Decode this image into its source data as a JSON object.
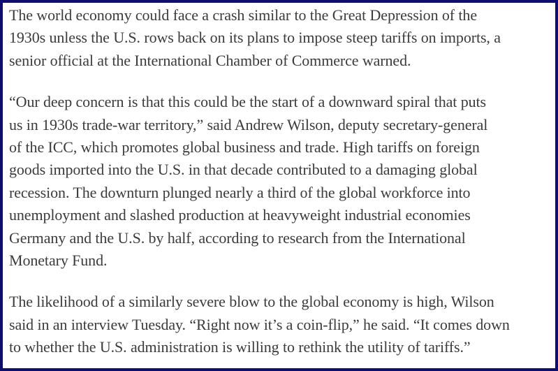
{
  "article": {
    "background_color": "#ffffff",
    "border_color": "#0e0e70",
    "text_color": "#3b3b3b",
    "paragraphs": [
      {
        "lines": [
          "The world economy could face a crash similar to the Great Depression of the",
          "1930s unless the U.S. rows back on its plans to impose steep tariffs on imports, a",
          "senior official at the International Chamber of Commerce warned."
        ]
      },
      {
        "lines": [
          "“Our deep concern is that this could be the start of a downward spiral that puts",
          "us in 1930s trade-war territory,” said Andrew Wilson, deputy secretary-general",
          "of the ICC, which promotes global business and trade. High tariffs on foreign",
          "goods imported into the U.S. in that decade contributed to a damaging global",
          "recession. The downturn plunged nearly a third of the global workforce into",
          "unemployment and slashed production at heavyweight industrial economies",
          "Germany and the U.S. by half, according to research from the International",
          "Monetary Fund."
        ]
      },
      {
        "lines": [
          "The likelihood of a similarly severe blow to the global economy is high, Wilson",
          "said in an interview Tuesday. “Right now it’s a coin-flip,” he said. “It comes down",
          "to whether the U.S. administration is willing to rethink the utility of tariffs.”"
        ]
      }
    ]
  }
}
